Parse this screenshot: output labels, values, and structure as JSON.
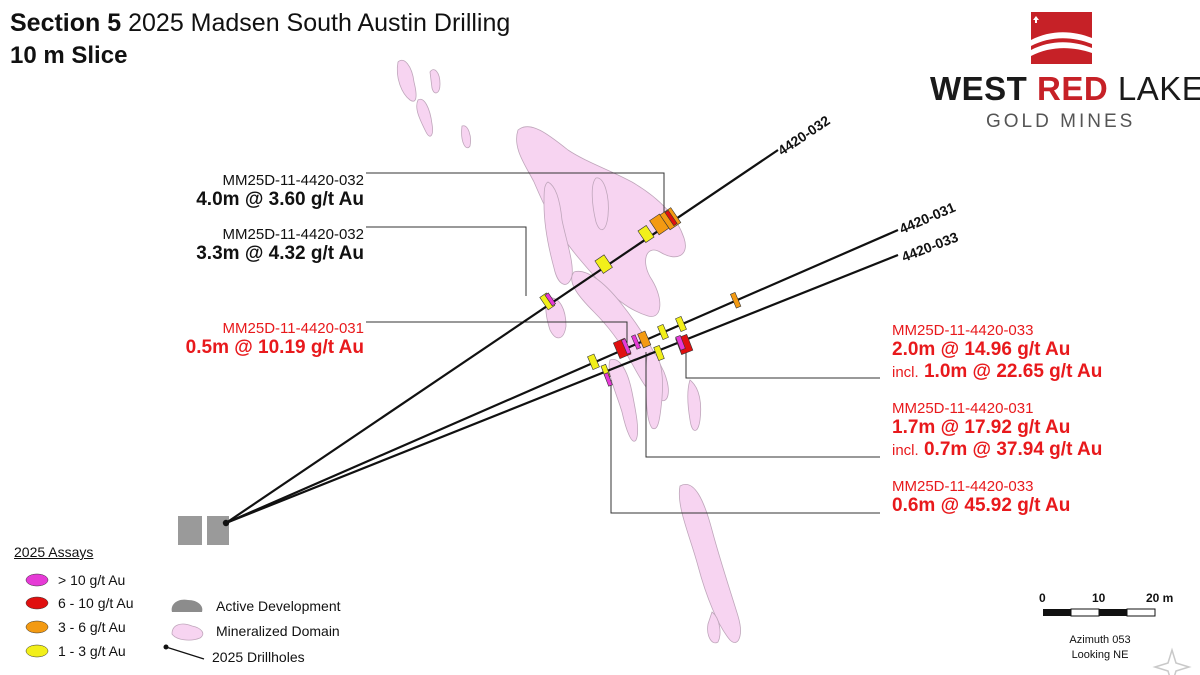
{
  "title": {
    "bold": "Section 5",
    "rest": "2025 Madsen South Austin Drilling"
  },
  "subtitle": "10 m Slice",
  "logo": {
    "word1": "WEST",
    "word2": "RED",
    "word3": "LAKE",
    "sub": "GOLD MINES"
  },
  "drillholes": [
    {
      "name": "4420-032"
    },
    {
      "name": "4420-031"
    },
    {
      "name": "4420-033"
    }
  ],
  "callouts": [
    {
      "hole": "MM25D-11-4420-032",
      "value": "4.0m @ 3.60 g/t Au",
      "color": "#111111"
    },
    {
      "hole": "MM25D-11-4420-032",
      "value": "3.3m @ 4.32 g/t Au",
      "color": "#111111"
    },
    {
      "hole": "MM25D-11-4420-031",
      "value": "0.5m @ 10.19 g/t Au",
      "color": "#e8191c"
    },
    {
      "hole": "MM25D-11-4420-033",
      "value": "2.0m @ 14.96 g/t Au",
      "incl_prefix": "incl.",
      "incl_value": "1.0m @ 22.65 g/t Au",
      "color": "#e8191c"
    },
    {
      "hole": "MM25D-11-4420-031",
      "value": "1.7m @ 17.92 g/t Au",
      "incl_prefix": "incl.",
      "incl_value": "0.7m @ 37.94 g/t Au",
      "color": "#e8191c"
    },
    {
      "hole": "MM25D-11-4420-033",
      "value": "0.6m @ 45.92 g/t Au",
      "color": "#e8191c"
    }
  ],
  "legend": {
    "title": "2025 Assays",
    "assays": [
      {
        "label": "> 10 g/t Au",
        "color": "#e63ad6"
      },
      {
        "label": "6 - 10 g/t Au",
        "color": "#e01010"
      },
      {
        "label": "3 - 6 g/t Au",
        "color": "#f39a12"
      },
      {
        "label": "1 - 3 g/t Au",
        "color": "#f2ef1a"
      }
    ],
    "active_development": "Active Development",
    "mineralized_domain": "Mineralized Domain",
    "drillholes": "2025 Drillholes"
  },
  "scale": {
    "ticks": [
      "0",
      "10",
      "20 m"
    ],
    "azimuth": "Azimuth 053",
    "looking": "Looking NE"
  },
  "colors": {
    "domain_fill": "#f7d4f1",
    "domain_stroke": "#bfa6bb",
    "development": "#9a9a9a",
    "logo_red": "#c62127"
  }
}
